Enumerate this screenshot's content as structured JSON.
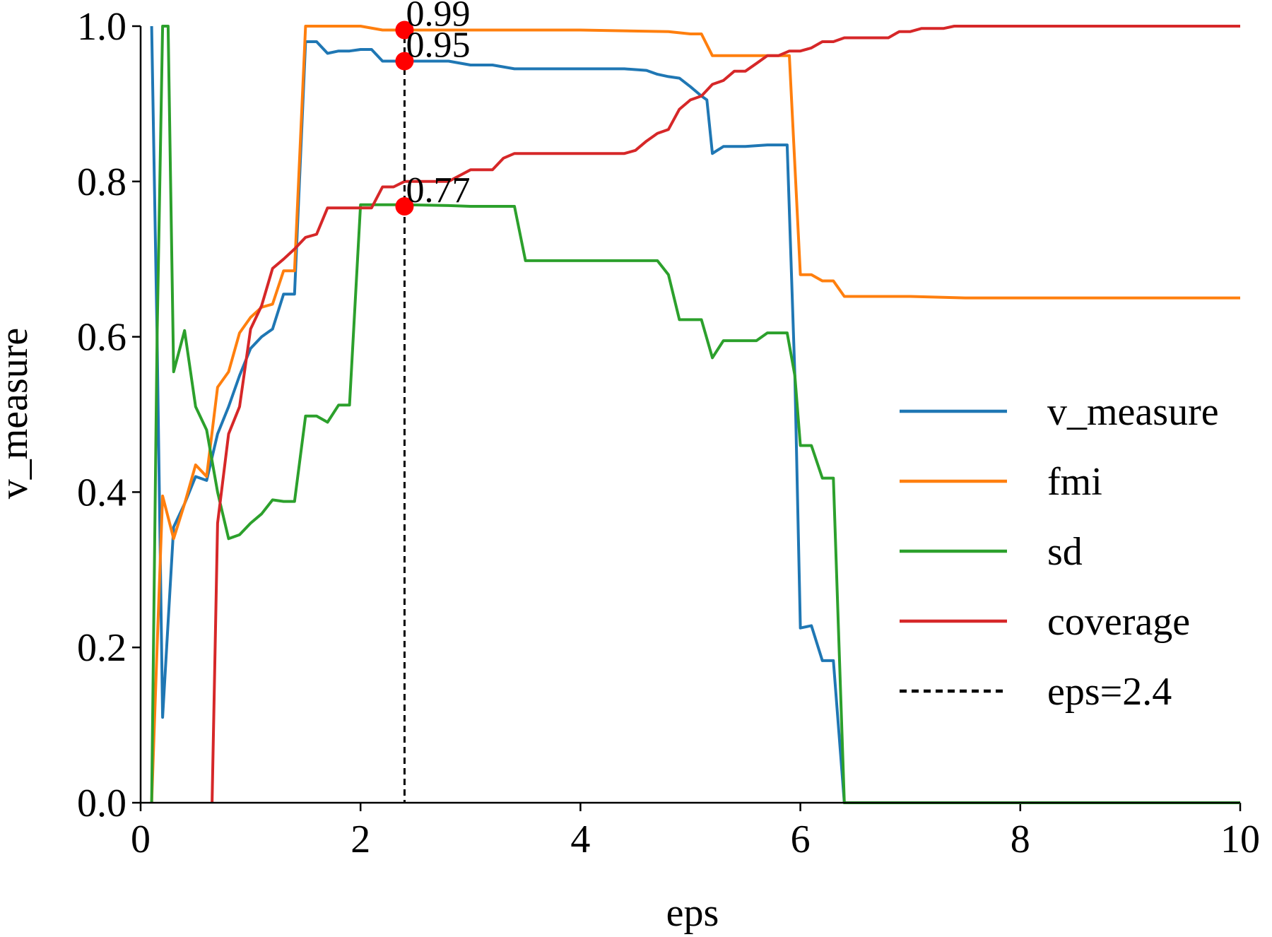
{
  "chart_data": {
    "type": "line",
    "title": "",
    "xlabel": "eps",
    "ylabel": "v_measure",
    "xlim": [
      0,
      10
    ],
    "ylim": [
      0,
      1.0
    ],
    "grid": false,
    "legend_position": "center-right",
    "xticks": [
      0,
      2,
      4,
      6,
      8,
      10
    ],
    "xtick_labels": [
      "0",
      "2",
      "4",
      "6",
      "8",
      "10"
    ],
    "yticks": [
      0,
      0.2,
      0.4,
      0.6,
      0.8,
      1.0
    ],
    "ytick_labels": [
      "0.0",
      "0.2",
      "0.4",
      "0.6",
      "0.8",
      "1.0"
    ],
    "series": [
      {
        "name": "v_measure",
        "color": "#1f77b4",
        "points": [
          [
            0.1,
            1.0
          ],
          [
            0.15,
            0.6
          ],
          [
            0.2,
            0.11
          ],
          [
            0.3,
            0.355
          ],
          [
            0.4,
            0.385
          ],
          [
            0.5,
            0.42
          ],
          [
            0.6,
            0.415
          ],
          [
            0.7,
            0.475
          ],
          [
            0.8,
            0.51
          ],
          [
            0.9,
            0.55
          ],
          [
            1.0,
            0.585
          ],
          [
            1.1,
            0.6
          ],
          [
            1.2,
            0.61
          ],
          [
            1.3,
            0.655
          ],
          [
            1.4,
            0.655
          ],
          [
            1.5,
            0.98
          ],
          [
            1.6,
            0.98
          ],
          [
            1.7,
            0.965
          ],
          [
            1.8,
            0.968
          ],
          [
            1.9,
            0.968
          ],
          [
            2.0,
            0.97
          ],
          [
            2.1,
            0.97
          ],
          [
            2.2,
            0.955
          ],
          [
            2.3,
            0.955
          ],
          [
            2.4,
            0.955
          ],
          [
            2.6,
            0.955
          ],
          [
            2.8,
            0.955
          ],
          [
            3.0,
            0.95
          ],
          [
            3.2,
            0.95
          ],
          [
            3.4,
            0.945
          ],
          [
            3.6,
            0.945
          ],
          [
            3.8,
            0.945
          ],
          [
            4.0,
            0.945
          ],
          [
            4.2,
            0.945
          ],
          [
            4.4,
            0.945
          ],
          [
            4.6,
            0.943
          ],
          [
            4.7,
            0.938
          ],
          [
            4.8,
            0.935
          ],
          [
            4.9,
            0.933
          ],
          [
            5.0,
            0.922
          ],
          [
            5.1,
            0.91
          ],
          [
            5.15,
            0.905
          ],
          [
            5.2,
            0.836
          ],
          [
            5.3,
            0.845
          ],
          [
            5.5,
            0.845
          ],
          [
            5.7,
            0.847
          ],
          [
            5.88,
            0.847
          ],
          [
            5.95,
            0.55
          ],
          [
            6.0,
            0.225
          ],
          [
            6.1,
            0.228
          ],
          [
            6.2,
            0.183
          ],
          [
            6.3,
            0.183
          ],
          [
            6.4,
            0.0
          ],
          [
            7.0,
            0.0
          ],
          [
            8.0,
            0.0
          ],
          [
            10.0,
            0.0
          ]
        ]
      },
      {
        "name": "fmi",
        "color": "#ff7f0e",
        "points": [
          [
            0.1,
            0.0
          ],
          [
            0.15,
            0.2
          ],
          [
            0.2,
            0.395
          ],
          [
            0.3,
            0.34
          ],
          [
            0.4,
            0.385
          ],
          [
            0.5,
            0.435
          ],
          [
            0.6,
            0.42
          ],
          [
            0.7,
            0.535
          ],
          [
            0.8,
            0.555
          ],
          [
            0.9,
            0.605
          ],
          [
            1.0,
            0.625
          ],
          [
            1.1,
            0.638
          ],
          [
            1.2,
            0.642
          ],
          [
            1.3,
            0.685
          ],
          [
            1.4,
            0.685
          ],
          [
            1.5,
            1.0
          ],
          [
            1.8,
            1.0
          ],
          [
            2.0,
            1.0
          ],
          [
            2.2,
            0.995
          ],
          [
            2.4,
            0.995
          ],
          [
            3.0,
            0.995
          ],
          [
            4.0,
            0.995
          ],
          [
            4.8,
            0.993
          ],
          [
            5.0,
            0.99
          ],
          [
            5.1,
            0.99
          ],
          [
            5.2,
            0.962
          ],
          [
            5.5,
            0.962
          ],
          [
            5.9,
            0.962
          ],
          [
            6.0,
            0.68
          ],
          [
            6.1,
            0.68
          ],
          [
            6.2,
            0.672
          ],
          [
            6.3,
            0.672
          ],
          [
            6.4,
            0.652
          ],
          [
            7.0,
            0.652
          ],
          [
            7.5,
            0.65
          ],
          [
            10.0,
            0.65
          ]
        ]
      },
      {
        "name": "sd",
        "color": "#2ca02c",
        "points": [
          [
            0.1,
            0.0
          ],
          [
            0.15,
            0.6
          ],
          [
            0.2,
            1.0
          ],
          [
            0.25,
            1.0
          ],
          [
            0.3,
            0.555
          ],
          [
            0.4,
            0.608
          ],
          [
            0.5,
            0.51
          ],
          [
            0.6,
            0.48
          ],
          [
            0.7,
            0.4
          ],
          [
            0.8,
            0.34
          ],
          [
            0.9,
            0.345
          ],
          [
            1.0,
            0.36
          ],
          [
            1.1,
            0.372
          ],
          [
            1.2,
            0.39
          ],
          [
            1.3,
            0.388
          ],
          [
            1.4,
            0.388
          ],
          [
            1.5,
            0.498
          ],
          [
            1.6,
            0.498
          ],
          [
            1.7,
            0.49
          ],
          [
            1.8,
            0.512
          ],
          [
            1.9,
            0.512
          ],
          [
            2.0,
            0.77
          ],
          [
            2.2,
            0.77
          ],
          [
            2.4,
            0.77
          ],
          [
            2.8,
            0.769
          ],
          [
            3.0,
            0.768
          ],
          [
            3.4,
            0.768
          ],
          [
            3.5,
            0.698
          ],
          [
            3.8,
            0.698
          ],
          [
            4.0,
            0.698
          ],
          [
            4.4,
            0.698
          ],
          [
            4.7,
            0.698
          ],
          [
            4.8,
            0.68
          ],
          [
            4.9,
            0.622
          ],
          [
            5.0,
            0.622
          ],
          [
            5.1,
            0.622
          ],
          [
            5.2,
            0.573
          ],
          [
            5.3,
            0.595
          ],
          [
            5.5,
            0.595
          ],
          [
            5.6,
            0.595
          ],
          [
            5.7,
            0.605
          ],
          [
            5.88,
            0.605
          ],
          [
            5.95,
            0.55
          ],
          [
            6.0,
            0.46
          ],
          [
            6.1,
            0.46
          ],
          [
            6.2,
            0.418
          ],
          [
            6.3,
            0.418
          ],
          [
            6.4,
            0.0
          ],
          [
            7.0,
            0.0
          ],
          [
            8.0,
            0.0
          ],
          [
            10.0,
            0.0
          ]
        ]
      },
      {
        "name": "coverage",
        "color": "#d62728",
        "points": [
          [
            0.65,
            0.0
          ],
          [
            0.7,
            0.36
          ],
          [
            0.8,
            0.475
          ],
          [
            0.9,
            0.51
          ],
          [
            1.0,
            0.61
          ],
          [
            1.1,
            0.64
          ],
          [
            1.2,
            0.688
          ],
          [
            1.3,
            0.7
          ],
          [
            1.4,
            0.713
          ],
          [
            1.5,
            0.728
          ],
          [
            1.6,
            0.732
          ],
          [
            1.7,
            0.766
          ],
          [
            1.8,
            0.766
          ],
          [
            1.9,
            0.766
          ],
          [
            2.0,
            0.766
          ],
          [
            2.1,
            0.766
          ],
          [
            2.2,
            0.793
          ],
          [
            2.3,
            0.793
          ],
          [
            2.4,
            0.8
          ],
          [
            2.6,
            0.8
          ],
          [
            2.8,
            0.8
          ],
          [
            3.0,
            0.815
          ],
          [
            3.2,
            0.815
          ],
          [
            3.3,
            0.83
          ],
          [
            3.4,
            0.836
          ],
          [
            3.6,
            0.836
          ],
          [
            4.0,
            0.836
          ],
          [
            4.4,
            0.836
          ],
          [
            4.5,
            0.84
          ],
          [
            4.6,
            0.852
          ],
          [
            4.7,
            0.862
          ],
          [
            4.8,
            0.867
          ],
          [
            4.9,
            0.893
          ],
          [
            5.0,
            0.905
          ],
          [
            5.1,
            0.91
          ],
          [
            5.2,
            0.925
          ],
          [
            5.3,
            0.93
          ],
          [
            5.4,
            0.942
          ],
          [
            5.5,
            0.942
          ],
          [
            5.6,
            0.952
          ],
          [
            5.7,
            0.962
          ],
          [
            5.8,
            0.962
          ],
          [
            5.9,
            0.968
          ],
          [
            6.0,
            0.968
          ],
          [
            6.1,
            0.972
          ],
          [
            6.2,
            0.98
          ],
          [
            6.3,
            0.98
          ],
          [
            6.4,
            0.985
          ],
          [
            6.8,
            0.985
          ],
          [
            6.9,
            0.993
          ],
          [
            7.0,
            0.993
          ],
          [
            7.1,
            0.997
          ],
          [
            7.3,
            0.997
          ],
          [
            7.4,
            1.0
          ],
          [
            10.0,
            1.0
          ]
        ]
      }
    ],
    "reference_line": {
      "name": "eps=2.4",
      "x": 2.4,
      "color": "#000000",
      "style": "dashed"
    },
    "markers": [
      {
        "x": 2.4,
        "y": 0.995,
        "label": "0.99",
        "color": "#ff0000"
      },
      {
        "x": 2.4,
        "y": 0.955,
        "label": "0.95",
        "color": "#ff0000"
      },
      {
        "x": 2.4,
        "y": 0.768,
        "label": "0.77",
        "color": "#ff0000"
      }
    ],
    "legend": [
      {
        "label": "v_measure",
        "color": "#1f77b4",
        "style": "solid"
      },
      {
        "label": "fmi",
        "color": "#ff7f0e",
        "style": "solid"
      },
      {
        "label": "sd",
        "color": "#2ca02c",
        "style": "solid"
      },
      {
        "label": "coverage",
        "color": "#d62728",
        "style": "solid"
      },
      {
        "label": "eps=2.4",
        "color": "#000000",
        "style": "dashed"
      }
    ]
  }
}
